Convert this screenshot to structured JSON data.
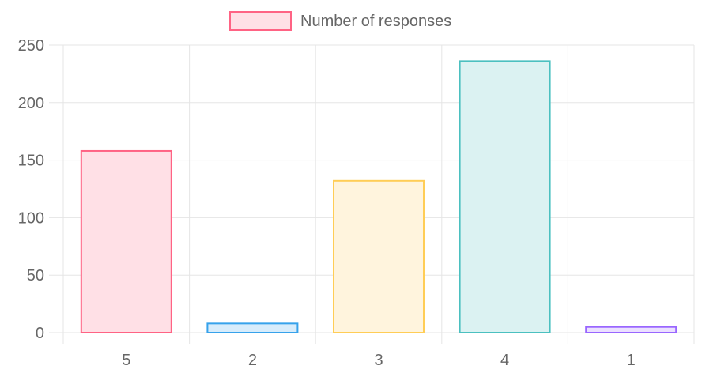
{
  "chart_data": {
    "type": "bar",
    "categories": [
      "5",
      "2",
      "3",
      "4",
      "1"
    ],
    "series": [
      {
        "name": "Number of responses",
        "values": [
          158,
          8,
          132,
          236,
          5
        ]
      }
    ],
    "ylim": [
      0,
      250
    ],
    "yticks": [
      "0",
      "50",
      "100",
      "150",
      "200",
      "250"
    ],
    "grid": true,
    "legend_position": "top-center",
    "bar_colors": [
      {
        "fill": "#ffe0e6",
        "stroke": "#ff6384"
      },
      {
        "fill": "#d7ecfb",
        "stroke": "#36a2eb"
      },
      {
        "fill": "#fff4dd",
        "stroke": "#ffcd56"
      },
      {
        "fill": "#dbf2f2",
        "stroke": "#4bc0c0"
      },
      {
        "fill": "#ebe0ff",
        "stroke": "#9966ff"
      }
    ],
    "legend_swatch": {
      "fill": "#ffe0e6",
      "stroke": "#ff6384"
    },
    "grid_color": "#e5e5e5",
    "text_color": "#666666"
  }
}
